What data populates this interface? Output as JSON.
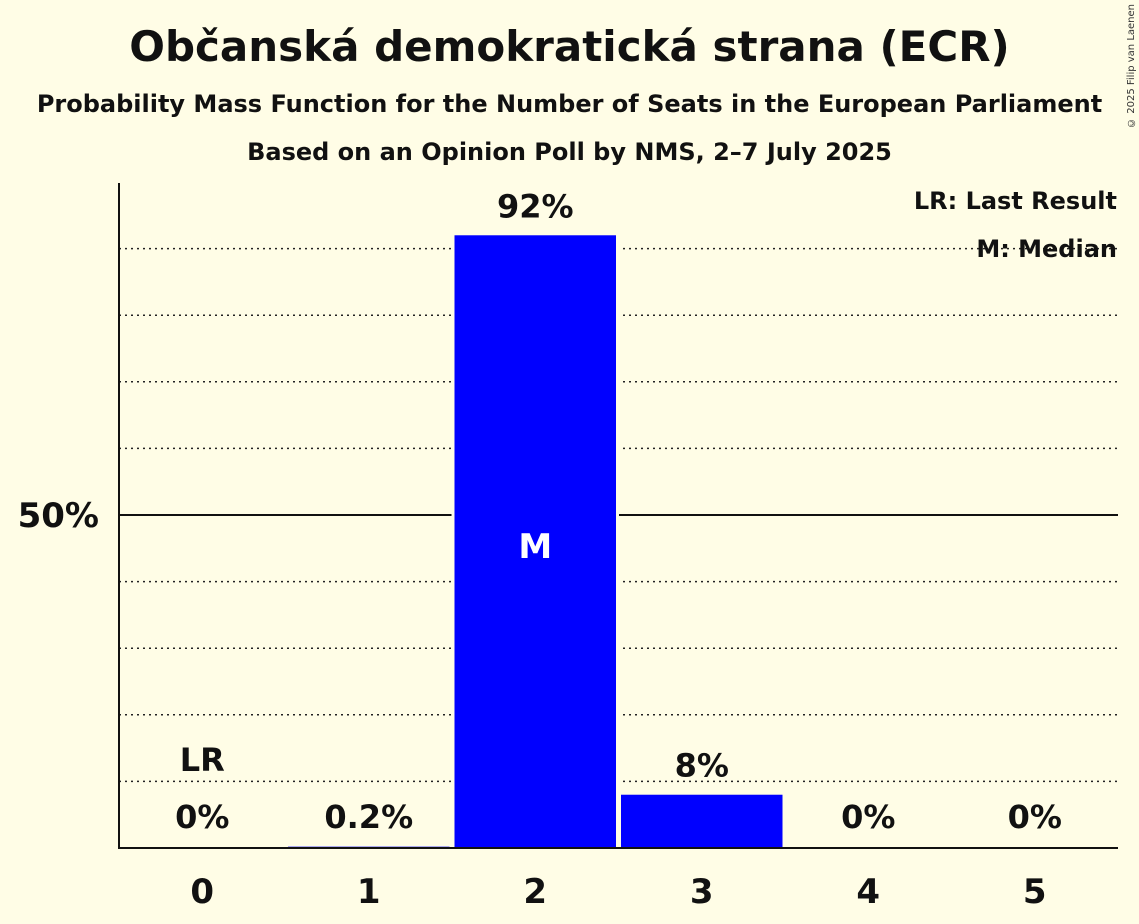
{
  "header": {
    "title": "Občanská demokratická strana (ECR)",
    "subtitle": "Probability Mass Function for the Number of Seats in the European Parliament",
    "subtitle2": "Based on an Opinion Poll by NMS, 2–7 July 2025",
    "copyright": "© 2025 Filip van Laenen"
  },
  "legend": {
    "last_result": "LR: Last Result",
    "median": "M: Median"
  },
  "colors": {
    "bar": "#0000ff",
    "background": "#fffde6",
    "text": "#111111"
  },
  "chart_data": {
    "type": "bar",
    "title": "Občanská demokratická strana (ECR)",
    "categories": [
      "0",
      "1",
      "2",
      "3",
      "4",
      "5"
    ],
    "values": [
      0,
      0.2,
      92,
      8,
      0,
      0
    ],
    "labels": [
      "0%",
      "0.2%",
      "92%",
      "8%",
      "0%",
      "0%"
    ],
    "ylim": [
      0,
      100
    ],
    "y_tick_label": "50%",
    "y_tick_value": 50,
    "gridlines": [
      10,
      20,
      30,
      40,
      60,
      70,
      80,
      90
    ],
    "last_result_index": 0,
    "last_result_marker": "LR",
    "median_index": 2,
    "median_marker": "M",
    "xlabel": "",
    "ylabel": ""
  }
}
